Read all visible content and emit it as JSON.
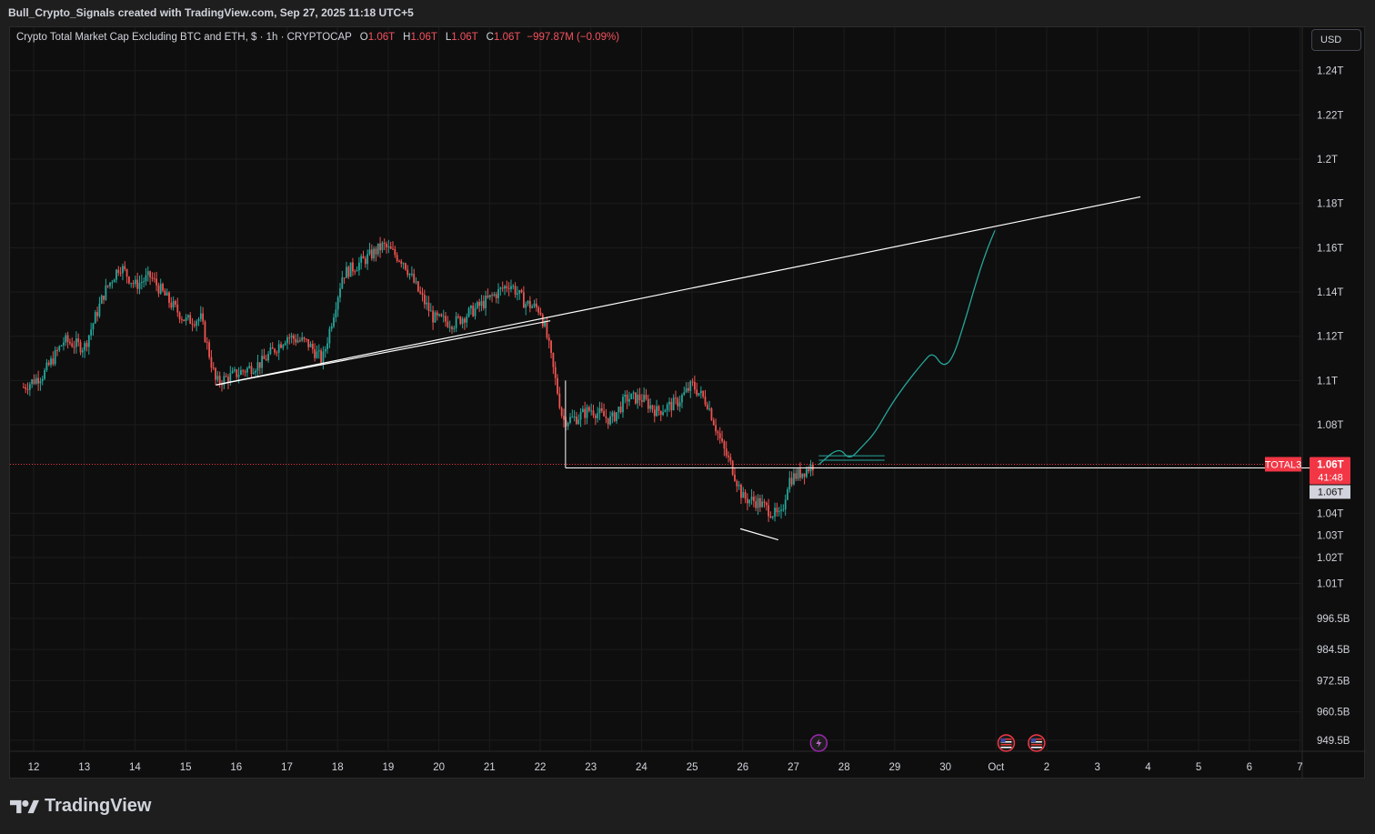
{
  "header": {
    "caption": "Bull_Crypto_Signals created with TradingView.com, Sep 27, 2025 11:18 UTC+5"
  },
  "legend": {
    "title": "Crypto Total Market Cap Excluding BTC and ETH, $ · 1h · CRYPTOCAP",
    "open_label": "O",
    "open": "1.06T",
    "high_label": "H",
    "high": "1.06T",
    "low_label": "L",
    "low": "1.06T",
    "close_label": "C",
    "close": "1.06T",
    "change": "−997.87M (−0.09%)"
  },
  "toolbar": {
    "currency_label": "USD"
  },
  "brand": {
    "name": "TradingView"
  },
  "colors": {
    "background": "#0e0e0e",
    "up": "#26a69a",
    "down": "#ef5350",
    "projection": "#26a69a",
    "trendline": "#ffffff",
    "price_tag": "#f23645"
  },
  "chart_data": {
    "type": "candlestick",
    "symbol": "TOTAL3",
    "interval": "1h",
    "y_ticks": [
      {
        "label": "1.24T",
        "value": 1.24
      },
      {
        "label": "1.22T",
        "value": 1.22
      },
      {
        "label": "1.2T",
        "value": 1.2
      },
      {
        "label": "1.18T",
        "value": 1.18
      },
      {
        "label": "1.16T",
        "value": 1.16
      },
      {
        "label": "1.14T",
        "value": 1.14
      },
      {
        "label": "1.12T",
        "value": 1.12
      },
      {
        "label": "1.1T",
        "value": 1.1
      },
      {
        "label": "1.08T",
        "value": 1.08
      },
      {
        "label": "1.04T",
        "value": 1.04
      },
      {
        "label": "1.03T",
        "value": 1.03
      },
      {
        "label": "1.02T",
        "value": 1.02
      },
      {
        "label": "1.01T",
        "value": 1.01
      },
      {
        "label": "996.5B",
        "value": 0.9965
      },
      {
        "label": "984.5B",
        "value": 0.9845
      },
      {
        "label": "972.5B",
        "value": 0.9725
      },
      {
        "label": "960.5B",
        "value": 0.9605
      },
      {
        "label": "949.5B",
        "value": 0.9495
      }
    ],
    "x_ticks": [
      {
        "label": "12",
        "day": 12
      },
      {
        "label": "13",
        "day": 13
      },
      {
        "label": "14",
        "day": 14
      },
      {
        "label": "15",
        "day": 15
      },
      {
        "label": "16",
        "day": 16
      },
      {
        "label": "17",
        "day": 17
      },
      {
        "label": "18",
        "day": 18
      },
      {
        "label": "19",
        "day": 19
      },
      {
        "label": "20",
        "day": 20
      },
      {
        "label": "21",
        "day": 21
      },
      {
        "label": "22",
        "day": 22
      },
      {
        "label": "23",
        "day": 23
      },
      {
        "label": "24",
        "day": 24
      },
      {
        "label": "25",
        "day": 25
      },
      {
        "label": "26",
        "day": 26
      },
      {
        "label": "27",
        "day": 27
      },
      {
        "label": "28",
        "day": 28
      },
      {
        "label": "29",
        "day": 29
      },
      {
        "label": "30",
        "day": 30
      },
      {
        "label": "Oct",
        "day": 31
      },
      {
        "label": "2",
        "day": 32
      },
      {
        "label": "3",
        "day": 33
      },
      {
        "label": "4",
        "day": 34
      },
      {
        "label": "5",
        "day": 35
      },
      {
        "label": "6",
        "day": 36
      },
      {
        "label": "7",
        "day": 37
      }
    ],
    "price_path": [
      [
        11.8,
        1.097
      ],
      [
        12.2,
        1.103
      ],
      [
        12.6,
        1.118
      ],
      [
        13.0,
        1.115
      ],
      [
        13.4,
        1.14
      ],
      [
        13.7,
        1.152
      ],
      [
        14.0,
        1.143
      ],
      [
        14.3,
        1.147
      ],
      [
        14.7,
        1.135
      ],
      [
        15.0,
        1.127
      ],
      [
        15.3,
        1.128
      ],
      [
        15.6,
        1.099
      ],
      [
        16.0,
        1.103
      ],
      [
        16.5,
        1.108
      ],
      [
        17.0,
        1.12
      ],
      [
        17.4,
        1.117
      ],
      [
        17.7,
        1.109
      ],
      [
        18.1,
        1.148
      ],
      [
        18.5,
        1.154
      ],
      [
        18.9,
        1.161
      ],
      [
        19.3,
        1.154
      ],
      [
        19.6,
        1.14
      ],
      [
        19.9,
        1.128
      ],
      [
        20.3,
        1.126
      ],
      [
        20.7,
        1.132
      ],
      [
        21.0,
        1.137
      ],
      [
        21.4,
        1.144
      ],
      [
        21.7,
        1.135
      ],
      [
        22.0,
        1.132
      ],
      [
        22.15,
        1.118
      ],
      [
        22.3,
        1.1
      ],
      [
        22.45,
        1.082
      ],
      [
        22.7,
        1.083
      ],
      [
        23.0,
        1.087
      ],
      [
        23.4,
        1.082
      ],
      [
        23.7,
        1.092
      ],
      [
        24.0,
        1.092
      ],
      [
        24.3,
        1.086
      ],
      [
        24.7,
        1.09
      ],
      [
        25.0,
        1.098
      ],
      [
        25.3,
        1.09
      ],
      [
        25.6,
        1.07
      ],
      [
        25.8,
        1.06
      ],
      [
        26.0,
        1.047
      ],
      [
        26.3,
        1.045
      ],
      [
        26.6,
        1.04
      ],
      [
        26.75,
        1.038
      ],
      [
        26.9,
        1.055
      ],
      [
        27.2,
        1.059
      ],
      [
        27.4,
        1.062
      ]
    ],
    "trendline_upper": {
      "from": [
        15.6,
        1.098
      ],
      "to": [
        33.85,
        1.183
      ]
    },
    "support_line": {
      "from": [
        22.5,
        1.0605
      ],
      "to": [
        37.3,
        1.0605
      ]
    },
    "resistance_line": {
      "from": [
        15.6,
        1.098
      ],
      "to": [
        22.2,
        1.127
      ]
    },
    "wedge_low_line": {
      "from": [
        25.95,
        1.033
      ],
      "to": [
        26.7,
        1.028
      ]
    },
    "projection_path": [
      [
        27.5,
        1.062
      ],
      [
        27.9,
        1.07
      ],
      [
        28.1,
        1.064
      ],
      [
        28.35,
        1.07
      ],
      [
        28.6,
        1.076
      ],
      [
        28.9,
        1.088
      ],
      [
        29.2,
        1.098
      ],
      [
        29.55,
        1.108
      ],
      [
        29.75,
        1.113
      ],
      [
        29.95,
        1.106
      ],
      [
        30.15,
        1.11
      ],
      [
        30.4,
        1.128
      ],
      [
        30.6,
        1.144
      ],
      [
        30.8,
        1.158
      ],
      [
        30.98,
        1.168
      ]
    ],
    "consolidation_lines": [
      {
        "from": [
          27.5,
          1.066
        ],
        "to": [
          28.8,
          1.066
        ]
      },
      {
        "from": [
          27.5,
          1.064
        ],
        "to": [
          28.8,
          1.064
        ]
      }
    ],
    "current_price": {
      "symbol_label": "TOTAL3",
      "value_label": "1.06T",
      "countdown": "41:48",
      "crosshair_label": "1.06T",
      "value": 1.0605
    },
    "events": [
      {
        "type": "lightning",
        "day": 27.5
      },
      {
        "type": "us-flag",
        "day": 31.2
      },
      {
        "type": "us-flag",
        "day": 31.8
      }
    ],
    "grid": true
  }
}
